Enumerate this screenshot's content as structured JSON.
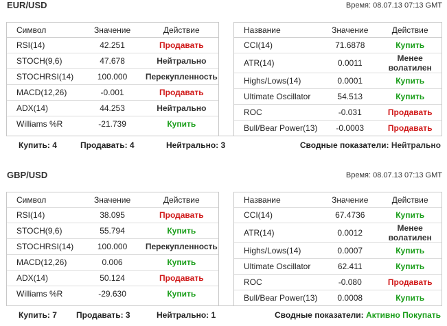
{
  "sections": [
    {
      "pair": "EUR/USD",
      "time": "Время: 08.07.13 07:13 GMT",
      "left_headers": [
        "Символ",
        "Значение",
        "Действие"
      ],
      "right_headers": [
        "Название",
        "Значение",
        "Действие"
      ],
      "left_rows": [
        {
          "name": "RSI(14)",
          "value": "42.251",
          "action": "Продавать",
          "type": "sell"
        },
        {
          "name": "STOCH(9,6)",
          "value": "47.678",
          "action": "Нейтрально",
          "type": "neutral"
        },
        {
          "name": "STOCHRSI(14)",
          "value": "100.000",
          "action": "Перекупленность",
          "type": "neutral"
        },
        {
          "name": "MACD(12,26)",
          "value": "-0.001",
          "action": "Продавать",
          "type": "sell"
        },
        {
          "name": "ADX(14)",
          "value": "44.253",
          "action": "Нейтрально",
          "type": "neutral"
        },
        {
          "name": "Williams %R",
          "value": "-21.739",
          "action": "Купить",
          "type": "buy"
        }
      ],
      "right_rows": [
        {
          "name": "CCI(14)",
          "value": "71.6878",
          "action": "Купить",
          "type": "buy"
        },
        {
          "name": "ATR(14)",
          "value": "0.0011",
          "action": "Менее волатилен",
          "type": "lowvol"
        },
        {
          "name": "Highs/Lows(14)",
          "value": "0.0001",
          "action": "Купить",
          "type": "buy"
        },
        {
          "name": "Ultimate Oscillator",
          "value": "54.513",
          "action": "Купить",
          "type": "buy"
        },
        {
          "name": "ROC",
          "value": "-0.031",
          "action": "Продавать",
          "type": "sell"
        },
        {
          "name": "Bull/Bear Power(13)",
          "value": "-0.0003",
          "action": "Продавать",
          "type": "sell"
        }
      ],
      "summary": {
        "buy": "Купить: 4",
        "sell": "Продавать: 4",
        "neutral": "Нейтрально: 3",
        "overall_label": "Сводные показатели: ",
        "overall_value": "Нейтрально",
        "overall_type": "neutral"
      }
    },
    {
      "pair": "GBP/USD",
      "time": "Время: 08.07.13 07:13 GMT",
      "left_headers": [
        "Символ",
        "Значение",
        "Действие"
      ],
      "right_headers": [
        "Название",
        "Значение",
        "Действие"
      ],
      "left_rows": [
        {
          "name": "RSI(14)",
          "value": "38.095",
          "action": "Продавать",
          "type": "sell"
        },
        {
          "name": "STOCH(9,6)",
          "value": "55.794",
          "action": "Купить",
          "type": "buy"
        },
        {
          "name": "STOCHRSI(14)",
          "value": "100.000",
          "action": "Перекупленность",
          "type": "neutral"
        },
        {
          "name": "MACD(12,26)",
          "value": "0.006",
          "action": "Купить",
          "type": "buy"
        },
        {
          "name": "ADX(14)",
          "value": "50.124",
          "action": "Продавать",
          "type": "sell"
        },
        {
          "name": "Williams %R",
          "value": "-29.630",
          "action": "Купить",
          "type": "buy"
        }
      ],
      "right_rows": [
        {
          "name": "CCI(14)",
          "value": "67.4736",
          "action": "Купить",
          "type": "buy"
        },
        {
          "name": "ATR(14)",
          "value": "0.0012",
          "action": "Менее волатилен",
          "type": "lowvol"
        },
        {
          "name": "Highs/Lows(14)",
          "value": "0.0007",
          "action": "Купить",
          "type": "buy"
        },
        {
          "name": "Ultimate Oscillator",
          "value": "62.411",
          "action": "Купить",
          "type": "buy"
        },
        {
          "name": "ROC",
          "value": "-0.080",
          "action": "Продавать",
          "type": "sell"
        },
        {
          "name": "Bull/Bear Power(13)",
          "value": "0.0008",
          "action": "Купить",
          "type": "buy"
        }
      ],
      "summary": {
        "buy": "Купить: 7",
        "sell": "Продавать: 3",
        "neutral": "Нейтрально: 1",
        "overall_label": "Сводные показатели: ",
        "overall_value": "Активно Покупать",
        "overall_type": "buy"
      }
    }
  ],
  "colors": {
    "sell": "#d01818",
    "buy": "#1a9e1a",
    "neutral": "#333333",
    "border": "#c8c8c8"
  }
}
